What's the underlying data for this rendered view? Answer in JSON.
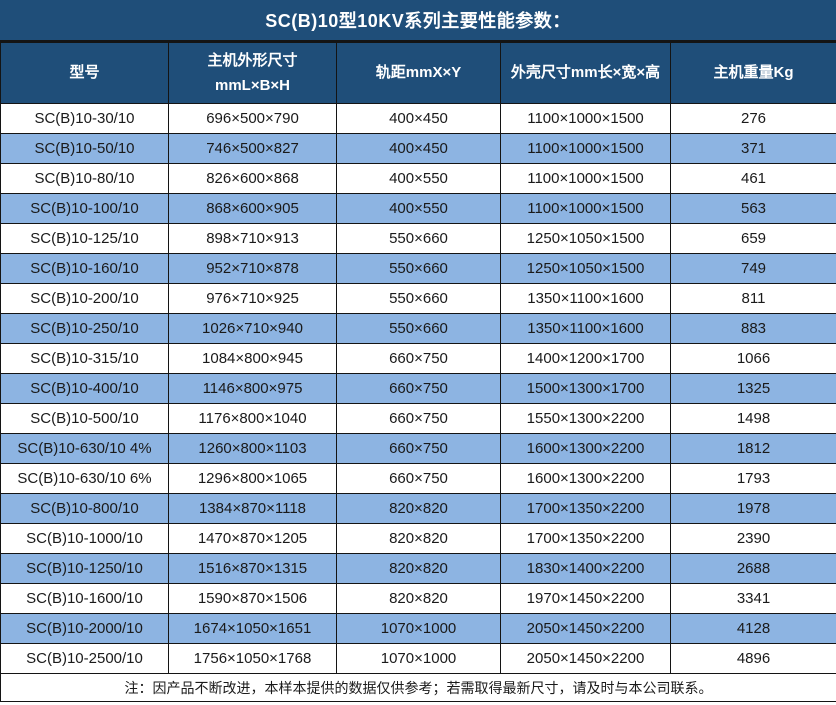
{
  "title": "SC(B)10型10KV系列主要性能参数：",
  "colors": {
    "header_bg": "#1F4E79",
    "alt_row_bg": "#8DB4E2",
    "border": "#141414",
    "header_text": "#ffffff",
    "body_text": "#1a1a1a"
  },
  "table": {
    "columns": [
      {
        "name": "model",
        "lines": [
          "型号"
        ]
      },
      {
        "name": "dimensions",
        "lines": [
          "主机外形尺寸",
          "mmL×B×H"
        ]
      },
      {
        "name": "gauge",
        "lines": [
          "轨距mmX×Y"
        ]
      },
      {
        "name": "shell-size",
        "lines": [
          "外壳尺寸mm长×宽×高"
        ]
      },
      {
        "name": "weight",
        "lines": [
          "主机重量Kg"
        ]
      }
    ],
    "rows": [
      [
        "SC(B)10-30/10",
        "696×500×790",
        "400×450",
        "1100×1000×1500",
        "276"
      ],
      [
        "SC(B)10-50/10",
        "746×500×827",
        "400×450",
        "1100×1000×1500",
        "371"
      ],
      [
        "SC(B)10-80/10",
        "826×600×868",
        "400×550",
        "1100×1000×1500",
        "461"
      ],
      [
        "SC(B)10-100/10",
        "868×600×905",
        "400×550",
        "1100×1000×1500",
        "563"
      ],
      [
        "SC(B)10-125/10",
        "898×710×913",
        "550×660",
        "1250×1050×1500",
        "659"
      ],
      [
        "SC(B)10-160/10",
        "952×710×878",
        "550×660",
        "1250×1050×1500",
        "749"
      ],
      [
        "SC(B)10-200/10",
        "976×710×925",
        "550×660",
        "1350×1100×1600",
        "811"
      ],
      [
        "SC(B)10-250/10",
        "1026×710×940",
        "550×660",
        "1350×1100×1600",
        "883"
      ],
      [
        "SC(B)10-315/10",
        "1084×800×945",
        "660×750",
        "1400×1200×1700",
        "1066"
      ],
      [
        "SC(B)10-400/10",
        "1146×800×975",
        "660×750",
        "1500×1300×1700",
        "1325"
      ],
      [
        "SC(B)10-500/10",
        "1176×800×1040",
        "660×750",
        "1550×1300×2200",
        "1498"
      ],
      [
        "SC(B)10-630/10 4%",
        "1260×800×1103",
        "660×750",
        "1600×1300×2200",
        "1812"
      ],
      [
        "SC(B)10-630/10 6%",
        "1296×800×1065",
        "660×750",
        "1600×1300×2200",
        "1793"
      ],
      [
        "SC(B)10-800/10",
        "1384×870×1118",
        "820×820",
        "1700×1350×2200",
        "1978"
      ],
      [
        "SC(B)10-1000/10",
        "1470×870×1205",
        "820×820",
        "1700×1350×2200",
        "2390"
      ],
      [
        "SC(B)10-1250/10",
        "1516×870×1315",
        "820×820",
        "1830×1400×2200",
        "2688"
      ],
      [
        "SC(B)10-1600/10",
        "1590×870×1506",
        "820×820",
        "1970×1450×2200",
        "3341"
      ],
      [
        "SC(B)10-2000/10",
        "1674×1050×1651",
        "1070×1000",
        "2050×1450×2200",
        "4128"
      ],
      [
        "SC(B)10-2500/10",
        "1756×1050×1768",
        "1070×1000",
        "2050×1450×2200",
        "4896"
      ]
    ]
  },
  "note": "注：因产品不断改进，本样本提供的数据仅供参考；若需取得最新尺寸，请及时与本公司联系。"
}
